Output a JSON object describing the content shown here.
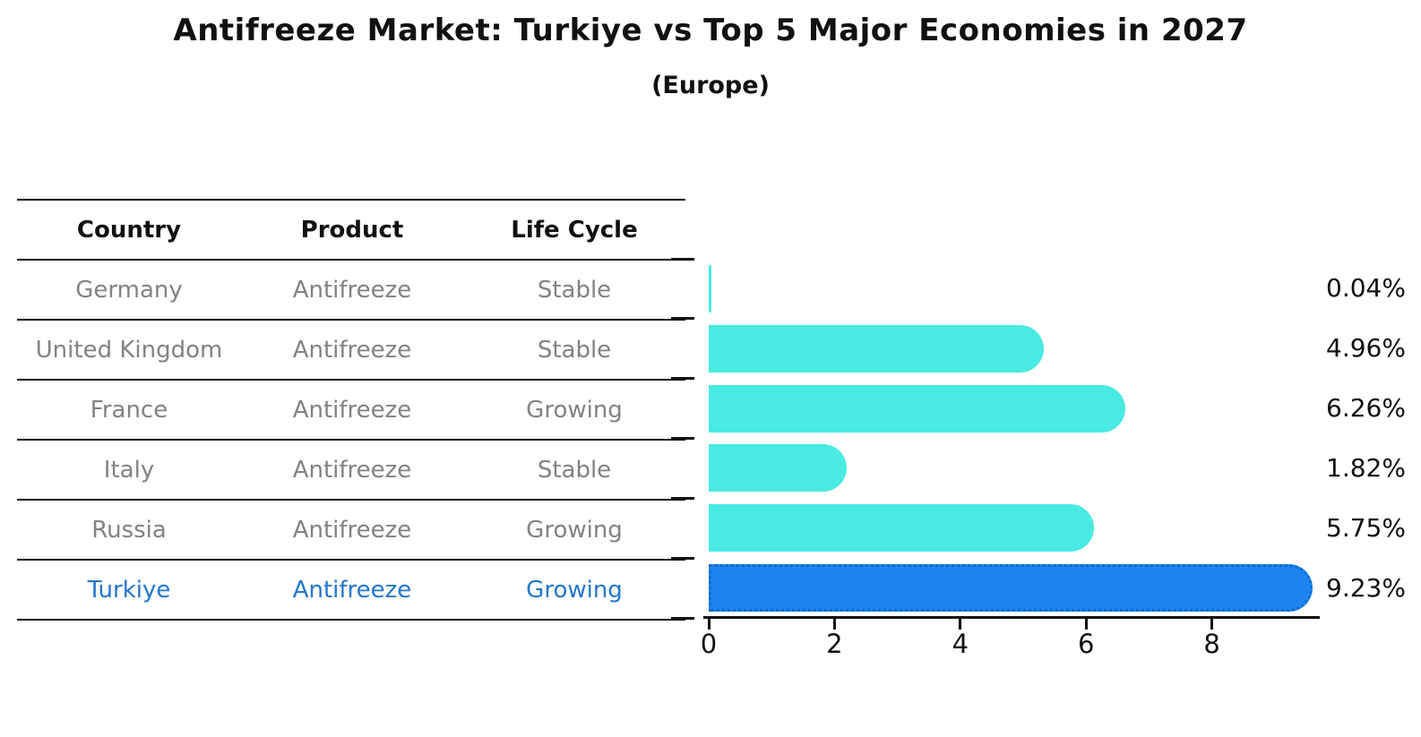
{
  "title": "Antifreeze Market: Turkiye vs Top 5 Major Economies in 2027",
  "subtitle": "(Europe)",
  "table": {
    "headers": [
      "Country",
      "Product",
      "Life Cycle"
    ],
    "rows": [
      {
        "country": "Germany",
        "product": "Antifreeze",
        "life_cycle": "Stable"
      },
      {
        "country": "United Kingdom",
        "product": "Antifreeze",
        "life_cycle": "Stable"
      },
      {
        "country": "France",
        "product": "Antifreeze",
        "life_cycle": "Growing"
      },
      {
        "country": "Italy",
        "product": "Antifreeze",
        "life_cycle": "Stable"
      },
      {
        "country": "Russia",
        "product": "Antifreeze",
        "life_cycle": "Growing"
      },
      {
        "country": "Turkiye",
        "product": "Antifreeze",
        "life_cycle": "Growing"
      }
    ],
    "highlight_row": "Turkiye"
  },
  "chart_data": {
    "type": "bar",
    "orientation": "horizontal",
    "title": "Antifreeze Market: Turkiye vs Top 5 Major Economies in 2027",
    "subtitle": "(Europe)",
    "categories": [
      "Germany",
      "United Kingdom",
      "France",
      "Italy",
      "Russia",
      "Turkiye"
    ],
    "values": [
      0.04,
      4.96,
      6.26,
      1.82,
      5.75,
      9.23
    ],
    "value_labels": [
      "0.04%",
      "4.96%",
      "6.26%",
      "1.82%",
      "5.75%",
      "9.23%"
    ],
    "xticks": [
      "0",
      "2",
      "4",
      "6",
      "8"
    ],
    "xtick_values": [
      0,
      2,
      4,
      6,
      8
    ],
    "xlim": [
      0,
      9.7
    ],
    "grid": false,
    "highlight_index": 5,
    "bar_color": "#48EAE2",
    "highlight_bar_color": "#1B84F0",
    "highlight_bar_edge_color": "#0D6BD0",
    "highlight_text_color": "#2277CC",
    "muted_text_color": "#828282",
    "axis_color": "#111111",
    "background_color": "#FFFFFF"
  }
}
